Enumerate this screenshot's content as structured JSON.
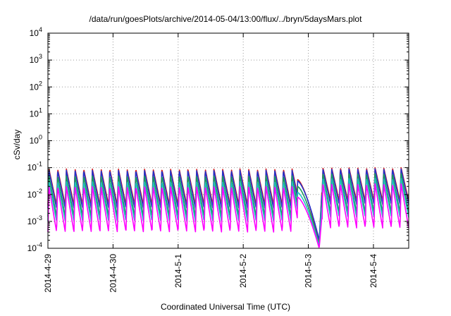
{
  "chart_data": {
    "type": "line",
    "title": "/data/run/goesPlots/archive/2014-05-04/13:00/flux/../bryn/5daysMars.plot",
    "xlabel": "Coordinated Universal Time (UTC)",
    "ylabel": "cSv/day",
    "yscale": "log",
    "ylim": [
      0.0001,
      10000
    ],
    "xlim": [
      "2014-04-29T00:00",
      "2014-05-04T13:00"
    ],
    "grid": true,
    "x_ticks": [
      "2014-4-29",
      "2014-4-30",
      "2014-5-1",
      "2014-5-2",
      "2014-5-3",
      "2014-5-4"
    ],
    "y_ticks": [
      {
        "base": "10",
        "exp": "-4"
      },
      {
        "base": "10",
        "exp": "-3"
      },
      {
        "base": "10",
        "exp": "-2"
      },
      {
        "base": "10",
        "exp": "-1"
      },
      {
        "base": "10",
        "exp": "0"
      },
      {
        "base": "10",
        "exp": "1"
      },
      {
        "base": "10",
        "exp": "2"
      },
      {
        "base": "10",
        "exp": "3"
      },
      {
        "base": "10",
        "exp": "4"
      }
    ],
    "series": [
      {
        "color": "#d62020",
        "peak": 0.09,
        "trough": 0.004,
        "dip_min": 0.00015,
        "post_peak": 0.1
      },
      {
        "color": "#2233cc",
        "peak": 0.08,
        "trough": 0.003,
        "dip_min": 0.0002,
        "post_peak": 0.09
      },
      {
        "color": "#1a9a5a",
        "peak": 0.05,
        "trough": 0.0015,
        "dip_min": 0.00013,
        "post_peak": 0.06
      },
      {
        "color": "#20c0c0",
        "peak": 0.03,
        "trough": 0.001,
        "dip_min": 0.00012,
        "post_peak": 0.04
      },
      {
        "color": "#ff00ff",
        "peak": 0.02,
        "trough": 0.0004,
        "dip_min": 0.0001,
        "post_peak": 0.025
      }
    ],
    "oscillation_period_hours": 3.2,
    "dip": {
      "start": "2014-05-02T20:00",
      "minimum": "2014-05-03T04:00",
      "recovery": "2014-05-03T05:00"
    }
  }
}
